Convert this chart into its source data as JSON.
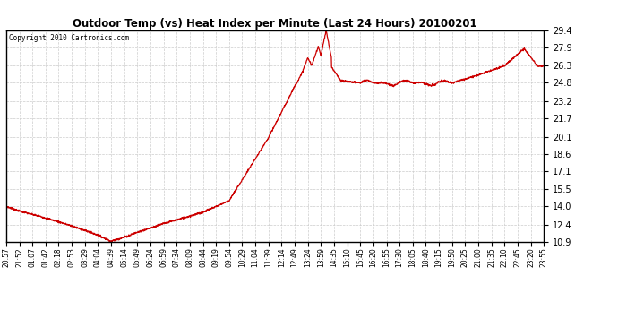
{
  "title": "Outdoor Temp (vs) Heat Index per Minute (Last 24 Hours) 20100201",
  "copyright": "Copyright 2010 Cartronics.com",
  "line_color": "#cc0000",
  "background_color": "#ffffff",
  "grid_color": "#cccccc",
  "yticks": [
    10.9,
    12.4,
    14.0,
    15.5,
    17.1,
    18.6,
    20.1,
    21.7,
    23.2,
    24.8,
    26.3,
    27.9,
    29.4
  ],
  "ymin": 10.9,
  "ymax": 29.4,
  "xtick_labels": [
    "20:57",
    "21:52",
    "01:07",
    "01:42",
    "02:18",
    "02:53",
    "03:29",
    "04:04",
    "04:39",
    "05:14",
    "05:49",
    "06:24",
    "06:59",
    "07:34",
    "08:09",
    "08:44",
    "09:19",
    "09:54",
    "10:29",
    "11:04",
    "11:39",
    "12:14",
    "12:49",
    "13:24",
    "13:59",
    "14:35",
    "15:10",
    "15:45",
    "16:20",
    "16:55",
    "17:30",
    "18:05",
    "18:40",
    "19:15",
    "19:50",
    "20:25",
    "21:00",
    "21:35",
    "22:10",
    "22:45",
    "23:20",
    "23:55"
  ]
}
